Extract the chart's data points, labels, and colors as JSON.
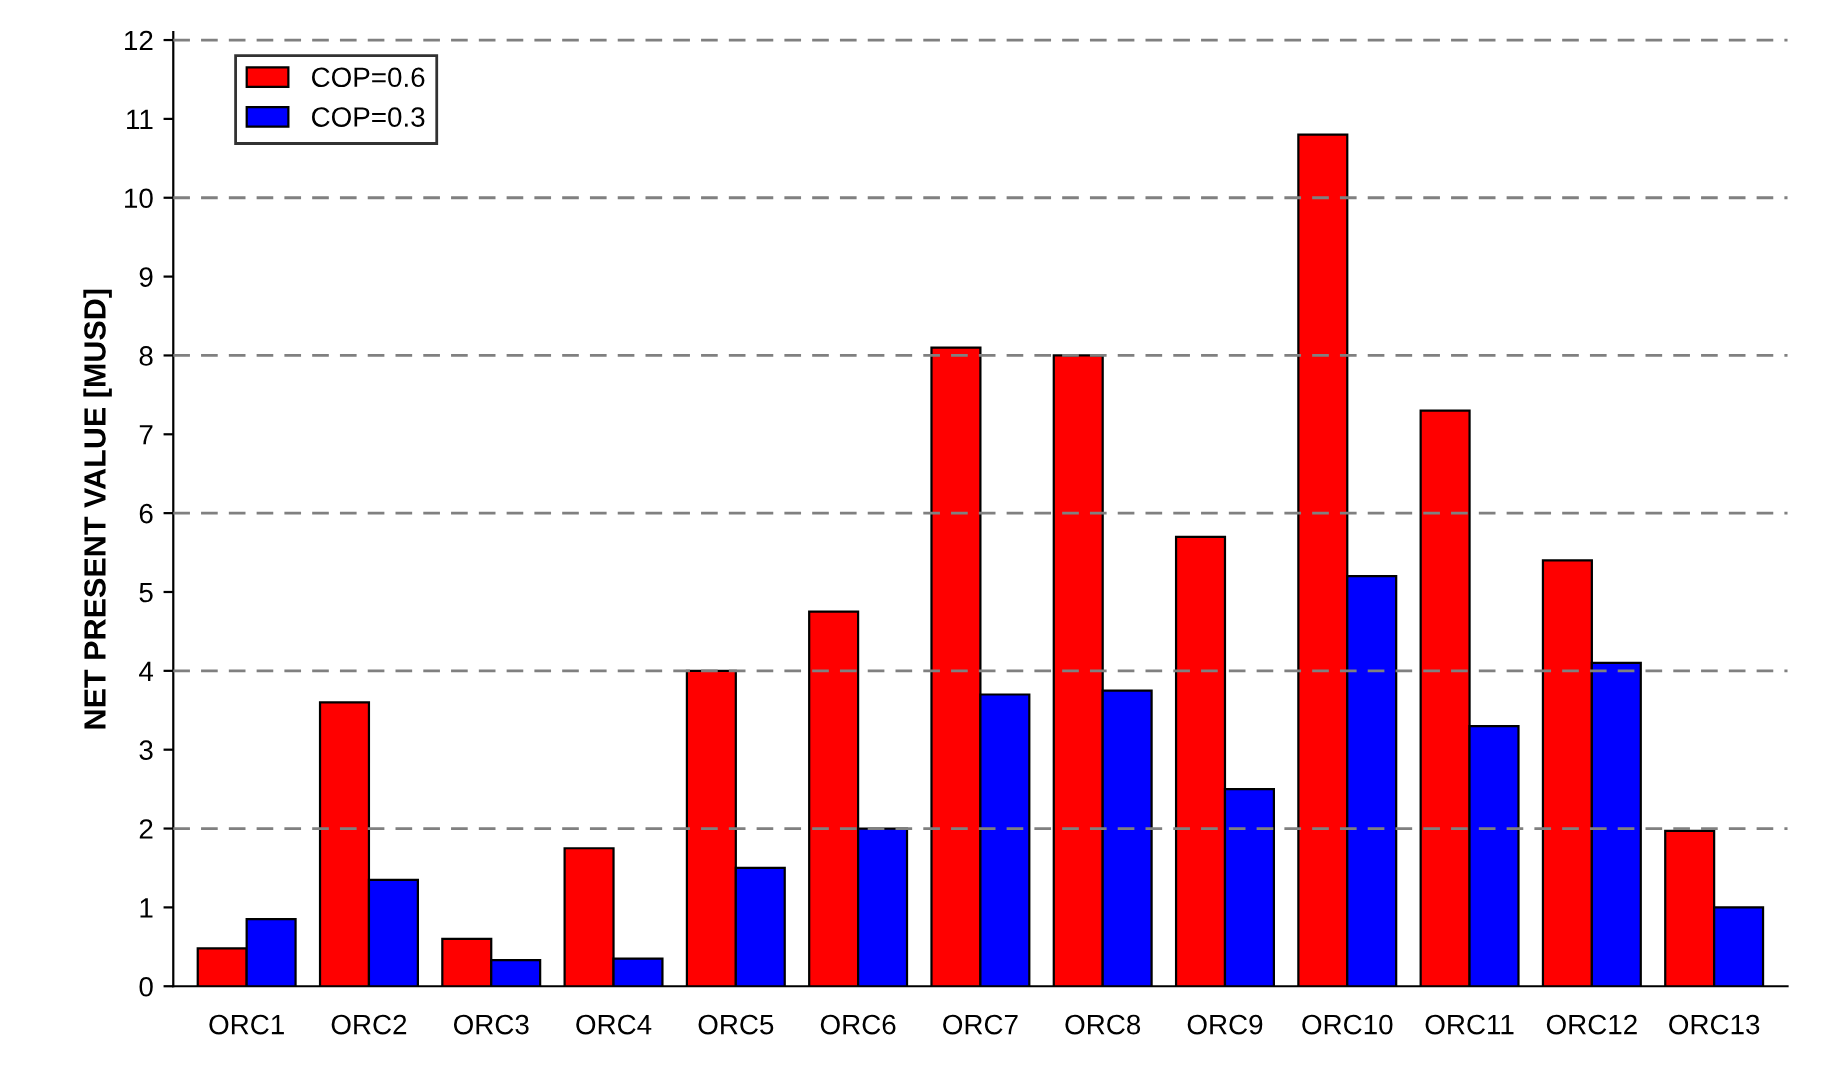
{
  "chart_data": {
    "type": "bar",
    "ylabel": "NET PRESENT VALUE [MUSD]",
    "categories": [
      "ORC1",
      "ORC2",
      "ORC3",
      "ORC4",
      "ORC5",
      "ORC6",
      "ORC7",
      "ORC8",
      "ORC9",
      "ORC10",
      "ORC11",
      "ORC12",
      "ORC13"
    ],
    "series": [
      {
        "name": "COP=0.6",
        "color": "#ff0000",
        "values": [
          0.48,
          3.6,
          0.6,
          1.75,
          4.0,
          4.75,
          8.1,
          8.0,
          5.7,
          10.8,
          7.3,
          5.4,
          1.97
        ]
      },
      {
        "name": "COP=0.3",
        "color": "#0000ff",
        "values": [
          0.85,
          1.35,
          0.33,
          0.35,
          1.5,
          2.0,
          3.7,
          3.75,
          2.5,
          5.2,
          3.3,
          4.1,
          1.0
        ]
      }
    ],
    "ylim": [
      0,
      12.1
    ],
    "yticks": [
      0,
      1,
      2,
      3,
      4,
      5,
      6,
      7,
      8,
      9,
      10,
      11,
      12
    ],
    "ref_lines": [
      {
        "axis": "y",
        "value": 2,
        "label": null,
        "color": "#808080",
        "line_style": "dashed"
      },
      {
        "axis": "y",
        "value": 4,
        "label": null,
        "color": "#808080",
        "line_style": "dashed"
      },
      {
        "axis": "y",
        "value": 6,
        "label": null,
        "color": "#808080",
        "line_style": "dashed"
      },
      {
        "axis": "y",
        "value": 8,
        "label": null,
        "color": "#808080",
        "line_style": "dashed"
      },
      {
        "axis": "y",
        "value": 10,
        "label": null,
        "color": "#808080",
        "line_style": "dashed"
      },
      {
        "axis": "y",
        "value": 12,
        "label": null,
        "color": "#808080",
        "line_style": "dashed"
      }
    ],
    "grid": false,
    "legend": "top left"
  }
}
